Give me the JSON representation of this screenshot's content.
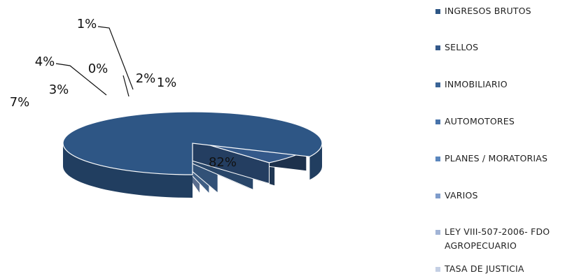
{
  "chart_data": {
    "type": "pie",
    "title": "",
    "three_d": true,
    "legend_position": "right",
    "slices": [
      {
        "name": "INGRESOS BRUTOS",
        "value": 82,
        "label": "82%",
        "color": "#2e5685"
      },
      {
        "name": "SELLOS",
        "value": 7,
        "label": "7%",
        "color": "#34598a"
      },
      {
        "name": "INMOBILIARIO",
        "value": 3,
        "label": "3%",
        "color": "#3a6496"
      },
      {
        "name": "AUTOMOTORES",
        "value": 4,
        "label": "4%",
        "color": "#4773aa"
      },
      {
        "name": "PLANES / MORATORIAS",
        "value": 0,
        "label": "0%",
        "color": "#5a86bd"
      },
      {
        "name": "VARIOS",
        "value": 1,
        "label": "1%",
        "color": "#7f9ccb"
      },
      {
        "name": "LEY VIII-507-2006- FDO AGROPECUARIO",
        "value": 2,
        "label": "2%",
        "color": "#a2b4d6"
      },
      {
        "name": "TASA DE JUSTICIA",
        "value": 1,
        "label": "1%",
        "color": "#c4cfe4"
      }
    ]
  }
}
